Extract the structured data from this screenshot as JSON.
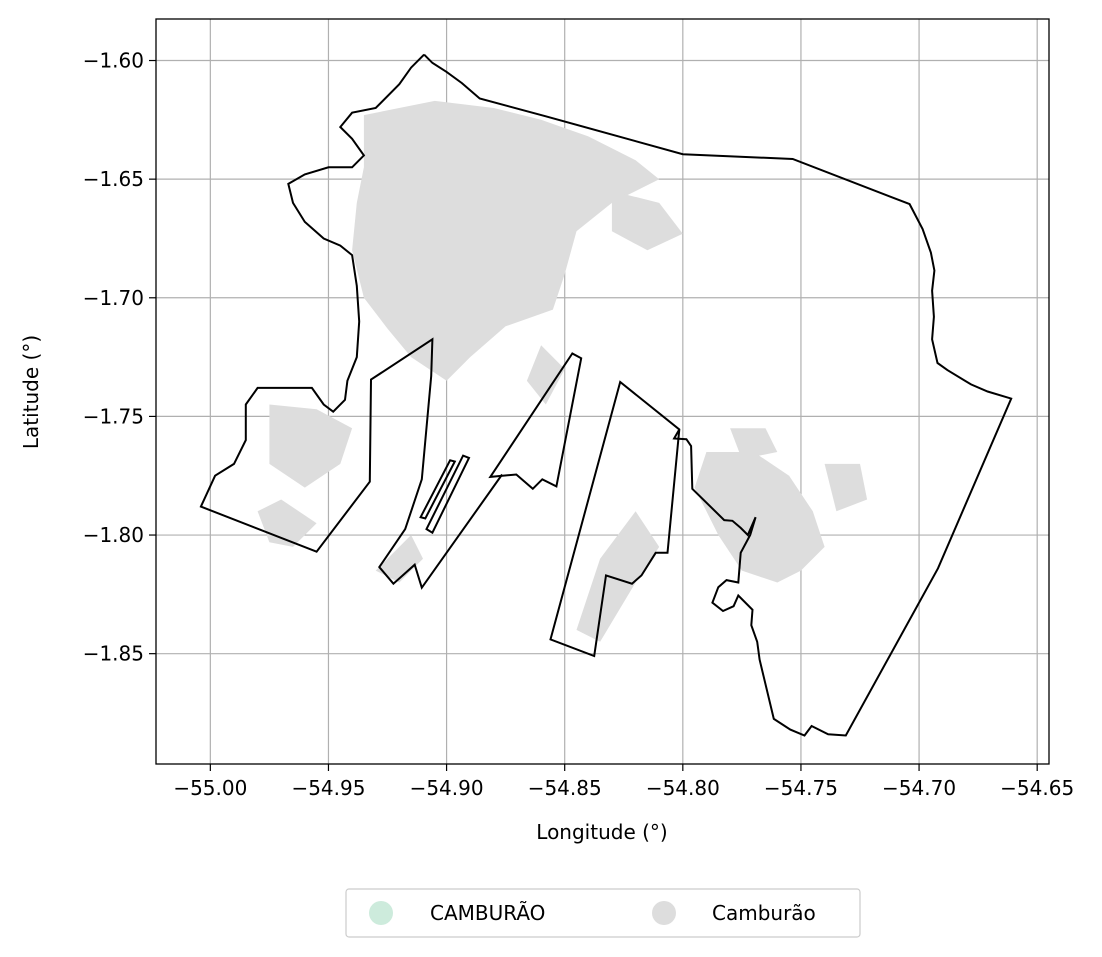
{
  "chart_data": {
    "type": "map",
    "xlabel": "Longitude (°)",
    "ylabel": "Latitude (°)",
    "xlim": [
      -55.023,
      -54.645
    ],
    "ylim": [
      -1.8965,
      -1.5825
    ],
    "grid": true,
    "x_ticks": [
      {
        "value": -55.0,
        "label": "−55.00"
      },
      {
        "value": -54.95,
        "label": "−54.95"
      },
      {
        "value": -54.9,
        "label": "−54.90"
      },
      {
        "value": -54.85,
        "label": "−54.85"
      },
      {
        "value": -54.8,
        "label": "−54.80"
      },
      {
        "value": -54.75,
        "label": "−54.75"
      },
      {
        "value": -54.7,
        "label": "−54.70"
      },
      {
        "value": -54.65,
        "label": "−54.65"
      }
    ],
    "y_ticks": [
      {
        "value": -1.6,
        "label": "−1.60"
      },
      {
        "value": -1.65,
        "label": "−1.65"
      },
      {
        "value": -1.7,
        "label": "−1.70"
      },
      {
        "value": -1.75,
        "label": "−1.75"
      },
      {
        "value": -1.8,
        "label": "−1.80"
      },
      {
        "value": -1.85,
        "label": "−1.85"
      }
    ],
    "legend": {
      "placement": "bottom-center",
      "entries": [
        {
          "label": "CAMBURÃO",
          "color": "#cdebdc"
        },
        {
          "label": "Camburão",
          "color": "#dddddd"
        }
      ]
    },
    "boundary_color": "#000000",
    "fill_color": "#dddddd",
    "boundary_polygons": [
      [
        [
          -54.9095,
          -1.5975
        ],
        [
          -54.906,
          -1.601
        ],
        [
          -54.9,
          -1.6048
        ],
        [
          -54.8935,
          -1.6095
        ],
        [
          -54.886,
          -1.616
        ],
        [
          -54.858,
          -1.6235
        ],
        [
          -54.8,
          -1.6395
        ],
        [
          -54.7535,
          -1.6415
        ],
        [
          -54.704,
          -1.6605
        ],
        [
          -54.6985,
          -1.671
        ],
        [
          -54.695,
          -1.681
        ],
        [
          -54.6935,
          -1.6885
        ],
        [
          -54.6945,
          -1.697
        ],
        [
          -54.6937,
          -1.708
        ],
        [
          -54.6945,
          -1.7175
        ],
        [
          -54.6922,
          -1.7275
        ],
        [
          -54.688,
          -1.7305
        ],
        [
          -54.678,
          -1.7365
        ],
        [
          -54.671,
          -1.7395
        ],
        [
          -54.661,
          -1.7425
        ],
        [
          -54.692,
          -1.814
        ],
        [
          -54.731,
          -1.8845
        ],
        [
          -54.7385,
          -1.884
        ],
        [
          -54.7455,
          -1.8805
        ],
        [
          -54.7485,
          -1.8845
        ],
        [
          -54.7545,
          -1.882
        ],
        [
          -54.7615,
          -1.8775
        ],
        [
          -54.7675,
          -1.8525
        ],
        [
          -54.768,
          -1.845
        ],
        [
          -54.771,
          -1.838
        ],
        [
          -54.7705,
          -1.8315
        ],
        [
          -54.7765,
          -1.8255
        ],
        [
          -54.778,
          -1.83
        ],
        [
          -54.783,
          -1.832
        ],
        [
          -54.7875,
          -1.8285
        ],
        [
          -54.785,
          -1.822
        ],
        [
          -54.7815,
          -1.819
        ],
        [
          -54.7765,
          -1.82
        ],
        [
          -54.7755,
          -1.8075
        ],
        [
          -54.7715,
          -1.8
        ],
        [
          -54.7692,
          -1.7925
        ],
        [
          -54.7718,
          -1.8055
        ],
        [
          -54.7725,
          -1.8
        ],
        [
          -54.779,
          -1.794
        ],
        [
          -54.7825,
          -1.7937
        ],
        [
          -54.796,
          -1.7805
        ],
        [
          -54.7965,
          -1.7625
        ],
        [
          -54.7985,
          -1.7596
        ],
        [
          -54.8037,
          -1.7593
        ],
        [
          -54.8065,
          -1.81
        ],
        [
          -54.7995,
          -1.8135
        ],
        [
          -54.7935,
          -1.8195
        ],
        [
          -54.794,
          -1.81
        ],
        [
          -54.81,
          -1.8075
        ],
        [
          -54.8115,
          -1.8155
        ],
        [
          -54.8115,
          -1.8205
        ],
        [
          -54.8175,
          -1.817
        ],
        [
          -54.8215,
          -1.8265
        ],
        [
          -54.8325,
          -1.852
        ],
        [
          -54.844,
          -1.851
        ],
        [
          -54.856,
          -1.844
        ],
        [
          -54.8265,
          -1.7355
        ],
        [
          -54.8015,
          -1.7558
        ],
        [
          -54.8005,
          -1.7575
        ],
        [
          -54.803,
          -1.7595
        ],
        [
          -54.8055,
          -1.7594
        ],
        [
          -54.8,
          -1.7559
        ],
        [
          -54.8265,
          -1.7355
        ],
        [
          -54.843,
          -1.7255
        ],
        [
          -54.8468,
          -1.7235
        ],
        [
          -54.8815,
          -1.7755
        ],
        [
          -54.8705,
          -1.7745
        ],
        [
          -54.8635,
          -1.7805
        ],
        [
          -54.8595,
          -1.7765
        ],
        [
          -54.8535,
          -1.7795
        ],
        [
          -54.843,
          -1.7255
        ]
      ]
    ],
    "outer_boundary": [
      [
        -54.9095,
        -1.5975
      ],
      [
        -54.906,
        -1.601
      ],
      [
        -54.9,
        -1.6048
      ],
      [
        -54.8935,
        -1.6095
      ],
      [
        -54.886,
        -1.616
      ],
      [
        -54.858,
        -1.6235
      ],
      [
        -54.8,
        -1.6395
      ],
      [
        -54.7535,
        -1.6415
      ],
      [
        -54.704,
        -1.6605
      ],
      [
        -54.6985,
        -1.671
      ],
      [
        -54.695,
        -1.681
      ],
      [
        -54.6935,
        -1.6885
      ],
      [
        -54.6945,
        -1.697
      ],
      [
        -54.6937,
        -1.708
      ],
      [
        -54.6945,
        -1.7175
      ],
      [
        -54.6922,
        -1.7275
      ],
      [
        -54.688,
        -1.7305
      ],
      [
        -54.678,
        -1.7365
      ],
      [
        -54.671,
        -1.7395
      ],
      [
        -54.661,
        -1.7425
      ],
      [
        -54.692,
        -1.814
      ],
      [
        -54.731,
        -1.8845
      ],
      [
        -54.7385,
        -1.884
      ],
      [
        -54.7455,
        -1.8805
      ],
      [
        -54.7485,
        -1.8845
      ],
      [
        -54.7545,
        -1.882
      ],
      [
        -54.7615,
        -1.8775
      ],
      [
        -54.7675,
        -1.8525
      ],
      [
        -54.7685,
        -1.845
      ],
      [
        -54.771,
        -1.838
      ],
      [
        -54.7705,
        -1.8315
      ],
      [
        -54.7765,
        -1.8255
      ],
      [
        -54.7785,
        -1.83
      ],
      [
        -54.783,
        -1.832
      ],
      [
        -54.7875,
        -1.8285
      ],
      [
        -54.785,
        -1.822
      ],
      [
        -54.7815,
        -1.819
      ],
      [
        -54.7765,
        -1.82
      ],
      [
        -54.7755,
        -1.8075
      ],
      [
        -54.7715,
        -1.8
      ],
      [
        -54.7692,
        -1.7925
      ],
      [
        -54.7725,
        -1.8
      ],
      [
        -54.7755,
        -1.797
      ],
      [
        -54.779,
        -1.794
      ],
      [
        -54.7825,
        -1.7937
      ],
      [
        -54.796,
        -1.7805
      ],
      [
        -54.7965,
        -1.7625
      ],
      [
        -54.7985,
        -1.7596
      ],
      [
        -54.8037,
        -1.7593
      ],
      [
        -54.8065,
        -1.7555
      ],
      [
        -54.8265,
        -1.7355
      ],
      [
        -54.843,
        -1.7255
      ],
      [
        -54.8468,
        -1.7235
      ],
      [
        -54.8815,
        -1.7755
      ]
    ],
    "regions": [
      {
        "name": "main",
        "coords": [
          [
            -54.9095,
            -1.5975
          ],
          [
            -54.906,
            -1.601
          ],
          [
            -54.9,
            -1.6048
          ],
          [
            -54.8935,
            -1.6095
          ],
          [
            -54.886,
            -1.616
          ],
          [
            -54.858,
            -1.6235
          ],
          [
            -54.8,
            -1.6395
          ],
          [
            -54.7535,
            -1.6415
          ],
          [
            -54.704,
            -1.6605
          ],
          [
            -54.6985,
            -1.671
          ],
          [
            -54.695,
            -1.681
          ],
          [
            -54.6935,
            -1.6885
          ],
          [
            -54.6945,
            -1.697
          ],
          [
            -54.6937,
            -1.708
          ],
          [
            -54.6945,
            -1.7175
          ],
          [
            -54.6922,
            -1.7275
          ],
          [
            -54.688,
            -1.7305
          ],
          [
            -54.678,
            -1.7365
          ],
          [
            -54.671,
            -1.7395
          ],
          [
            -54.661,
            -1.7425
          ],
          [
            -54.692,
            -1.814
          ],
          [
            -54.731,
            -1.8845
          ],
          [
            -54.7385,
            -1.884
          ],
          [
            -54.7455,
            -1.8805
          ],
          [
            -54.7485,
            -1.8845
          ],
          [
            -54.7545,
            -1.882
          ],
          [
            -54.7615,
            -1.8775
          ],
          [
            -54.7675,
            -1.8525
          ],
          [
            -54.7685,
            -1.845
          ],
          [
            -54.771,
            -1.838
          ],
          [
            -54.7705,
            -1.8315
          ],
          [
            -54.7765,
            -1.8255
          ],
          [
            -54.7785,
            -1.83
          ],
          [
            -54.783,
            -1.832
          ],
          [
            -54.7875,
            -1.8285
          ],
          [
            -54.785,
            -1.822
          ],
          [
            -54.7815,
            -1.819
          ],
          [
            -54.7765,
            -1.82
          ],
          [
            -54.7755,
            -1.8075
          ],
          [
            -54.7715,
            -1.8
          ],
          [
            -54.7692,
            -1.7925
          ],
          [
            -54.7725,
            -1.8
          ],
          [
            -54.7755,
            -1.797
          ],
          [
            -54.779,
            -1.794
          ],
          [
            -54.7825,
            -1.7937
          ],
          [
            -54.796,
            -1.7805
          ],
          [
            -54.7965,
            -1.7625
          ],
          [
            -54.7985,
            -1.7596
          ],
          [
            -54.8037,
            -1.7593
          ],
          [
            -54.8015,
            -1.7555
          ],
          [
            -54.8265,
            -1.7355
          ],
          [
            -54.8165,
            -1.806
          ],
          [
            -54.811,
            -1.8075
          ],
          [
            -54.8115,
            -1.8155
          ],
          [
            -54.8175,
            -1.817
          ],
          [
            -54.8215,
            -1.8265
          ],
          [
            -54.8325,
            -1.852
          ],
          [
            -54.856,
            -1.844
          ],
          [
            -54.8265,
            -1.7355
          ]
        ]
      }
    ]
  }
}
